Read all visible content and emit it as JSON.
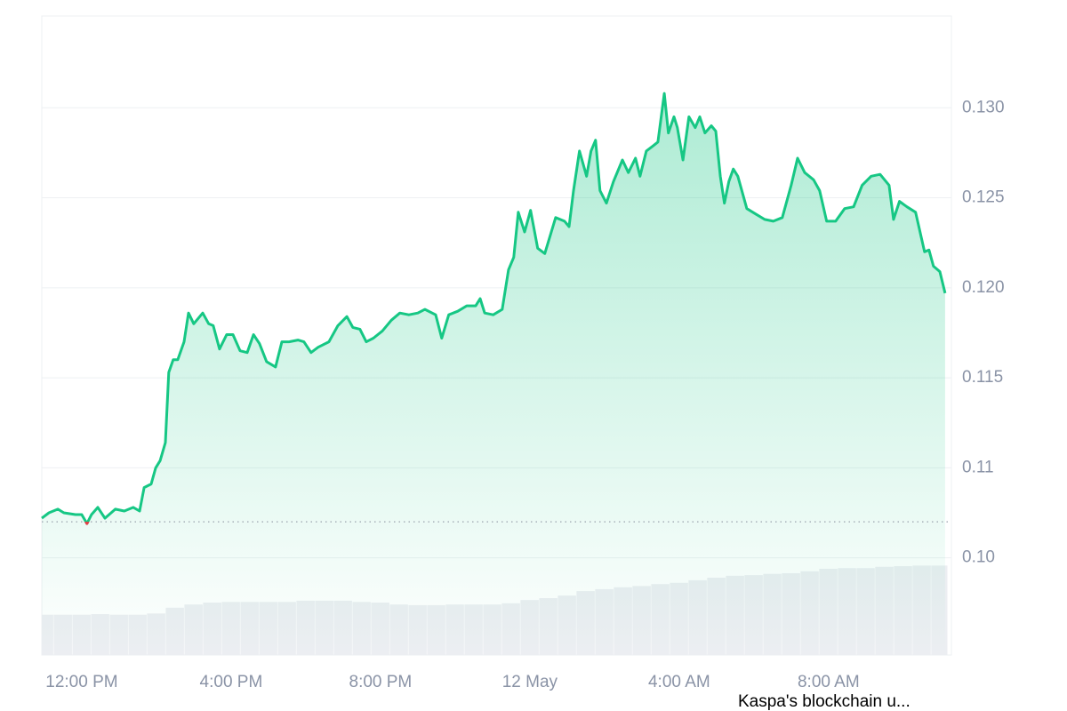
{
  "chart_data": {
    "type": "area",
    "color": "#16c784",
    "below_color": "#ea3943",
    "grid": true,
    "reference_line": 0.107,
    "xlim": [
      -1.07,
      23.29
    ],
    "xticks": [
      {
        "value": 0,
        "label": "12:00 PM"
      },
      {
        "value": 4,
        "label": "4:00 PM"
      },
      {
        "value": 8,
        "label": "8:00 PM"
      },
      {
        "value": 12,
        "label": "12 May"
      },
      {
        "value": 16,
        "label": "4:00 AM"
      },
      {
        "value": 20,
        "label": "8:00 AM"
      }
    ],
    "ylim": [
      0.0996,
      0.1351
    ],
    "yticks": [
      {
        "value": 0.105,
        "label": "0.10"
      },
      0.11,
      0.115,
      {
        "value": 0.12,
        "label": "0.120"
      },
      0.125,
      {
        "value": 0.13,
        "label": "0.130"
      }
    ],
    "x": [
      -1.07,
      -0.88,
      -0.64,
      -0.48,
      -0.17,
      0,
      0.14,
      0.26,
      0.43,
      0.62,
      0.9,
      1.14,
      1.38,
      1.55,
      1.67,
      1.86,
      1.98,
      2.1,
      2.24,
      2.33,
      2.45,
      2.57,
      2.74,
      2.86,
      3.0,
      3.24,
      3.4,
      3.52,
      3.69,
      3.88,
      4.05,
      4.24,
      4.43,
      4.6,
      4.76,
      4.95,
      5.19,
      5.36,
      5.55,
      5.79,
      5.95,
      6.14,
      6.33,
      6.62,
      6.86,
      7.1,
      7.26,
      7.45,
      7.62,
      7.81,
      8.05,
      8.29,
      8.52,
      8.76,
      9.0,
      9.19,
      9.48,
      9.64,
      9.83,
      10.07,
      10.31,
      10.55,
      10.67,
      10.79,
      11.02,
      11.26,
      11.43,
      11.57,
      11.69,
      11.86,
      12.02,
      12.21,
      12.4,
      12.69,
      12.93,
      13.05,
      13.17,
      13.33,
      13.52,
      13.64,
      13.76,
      13.88,
      14.05,
      14.24,
      14.48,
      14.64,
      14.83,
      14.95,
      15.12,
      15.31,
      15.43,
      15.6,
      15.71,
      15.86,
      15.95,
      16.1,
      16.26,
      16.43,
      16.55,
      16.69,
      16.86,
      16.98,
      17.1,
      17.21,
      17.33,
      17.45,
      17.57,
      17.81,
      18.05,
      18.29,
      18.52,
      18.76,
      19.0,
      19.17,
      19.36,
      19.6,
      19.76,
      19.95,
      20.19,
      20.43,
      20.67,
      20.9,
      21.14,
      21.38,
      21.62,
      21.74,
      21.9,
      22.1,
      22.33,
      22.57,
      22.69,
      22.81,
      22.98,
      23.12
    ],
    "values": [
      0.1072,
      0.1075,
      0.1077,
      0.1075,
      0.1074,
      0.1074,
      0.1069,
      0.1074,
      0.1078,
      0.1072,
      0.1077,
      0.1076,
      0.1078,
      0.1076,
      0.1089,
      0.1091,
      0.11,
      0.1104,
      0.1114,
      0.1153,
      0.116,
      0.116,
      0.117,
      0.1186,
      0.118,
      0.1186,
      0.118,
      0.1179,
      0.1166,
      0.1174,
      0.1174,
      0.1165,
      0.1164,
      0.1174,
      0.1169,
      0.1159,
      0.1156,
      0.117,
      0.117,
      0.1171,
      0.117,
      0.1164,
      0.1167,
      0.117,
      0.1179,
      0.1184,
      0.1178,
      0.1177,
      0.117,
      0.1172,
      0.1176,
      0.1182,
      0.1186,
      0.1185,
      0.1186,
      0.1188,
      0.1185,
      0.1172,
      0.1185,
      0.1187,
      0.119,
      0.119,
      0.1194,
      0.1186,
      0.1185,
      0.1188,
      0.121,
      0.1217,
      0.1242,
      0.1231,
      0.1243,
      0.1222,
      0.1219,
      0.1239,
      0.1237,
      0.1234,
      0.1254,
      0.1276,
      0.1262,
      0.1276,
      0.1282,
      0.1254,
      0.1247,
      0.1259,
      0.1271,
      0.1264,
      0.1272,
      0.1262,
      0.1276,
      0.1279,
      0.1281,
      0.1308,
      0.1286,
      0.1295,
      0.1289,
      0.1271,
      0.1295,
      0.1289,
      0.1295,
      0.1286,
      0.129,
      0.1287,
      0.1262,
      0.1247,
      0.1259,
      0.1266,
      0.1262,
      0.1244,
      0.1241,
      0.1238,
      0.1237,
      0.1239,
      0.1257,
      0.1272,
      0.1264,
      0.126,
      0.1254,
      0.1237,
      0.1237,
      0.1244,
      0.1245,
      0.1257,
      0.1262,
      0.1263,
      0.1257,
      0.1238,
      0.1248,
      0.1245,
      0.1242,
      0.122,
      0.1221,
      0.1212,
      0.1209,
      0.1197
    ],
    "volume": {
      "color": "#eceef2",
      "vlim": [
        0,
        100
      ],
      "x": [
        -1,
        -0.5,
        0,
        0.5,
        1,
        1.5,
        2,
        2.5,
        3,
        3.5,
        4,
        4.5,
        5,
        5.5,
        6,
        6.5,
        7,
        7.5,
        8,
        8.5,
        9,
        9.5,
        10,
        10.5,
        11,
        11.5,
        12,
        12.5,
        13,
        13.5,
        14,
        14.5,
        15,
        15.5,
        16,
        16.5,
        17,
        17.5,
        18,
        18.5,
        19,
        19.5,
        20,
        20.5,
        21,
        21.5,
        22,
        22.5,
        23
      ],
      "values": [
        6.3,
        6.3,
        6.3,
        6.4,
        6.3,
        6.3,
        6.5,
        7.4,
        7.9,
        8.2,
        8.3,
        8.3,
        8.3,
        8.3,
        8.5,
        8.5,
        8.5,
        8.3,
        8.2,
        7.9,
        7.8,
        7.8,
        7.9,
        7.9,
        7.9,
        8.1,
        8.6,
        8.9,
        9.3,
        10.0,
        10.3,
        10.6,
        10.8,
        11.1,
        11.3,
        11.7,
        12.1,
        12.4,
        12.5,
        12.7,
        12.8,
        13.1,
        13.5,
        13.6,
        13.6,
        13.8,
        13.9,
        14.0,
        14.0
      ]
    },
    "caption": "Kaspa's blockchain u..."
  }
}
